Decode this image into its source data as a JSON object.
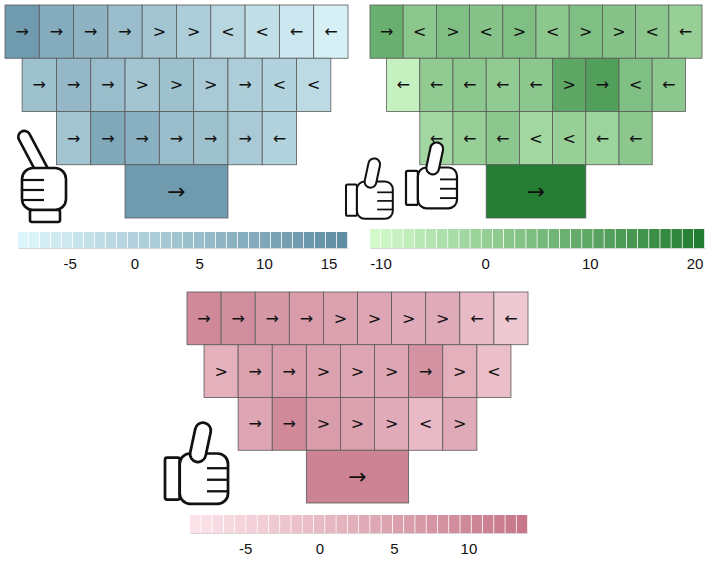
{
  "chart_data": [
    {
      "type": "heatmap",
      "rows": [
        [
          13,
          9,
          7,
          5,
          3,
          1,
          -1,
          -3,
          -5,
          -7
        ],
        [
          4,
          6,
          5,
          3,
          4,
          2,
          1,
          0,
          -2
        ],
        [
          3,
          10,
          8,
          5,
          4,
          2,
          0
        ],
        [
          13
        ]
      ],
      "arrows": [
        [
          "→",
          "→",
          "→",
          "→",
          ">",
          ">",
          "<",
          "<",
          "←",
          "←"
        ],
        [
          "→",
          "→",
          "→",
          ">",
          ">",
          ">",
          "→",
          "<",
          "<"
        ],
        [
          "→",
          "→",
          "→",
          "→",
          "→",
          "→",
          "←"
        ],
        [
          "→"
        ]
      ],
      "colorbar": {
        "range": [
          -9,
          16.5
        ],
        "ticks": [
          -5,
          0,
          5,
          10,
          15
        ],
        "color": [
          "#e0f8fd",
          "#5e8ca1"
        ]
      }
    },
    {
      "type": "heatmap",
      "rows": [
        [
          8,
          2,
          4,
          3,
          4,
          2,
          4,
          3,
          2,
          0
        ],
        [
          -8,
          1,
          2,
          1,
          2,
          10,
          12,
          4,
          2
        ],
        [
          -2,
          0,
          2,
          -2,
          0,
          -1,
          2
        ],
        [
          20
        ]
      ],
      "arrows": [
        [
          "→",
          "<",
          ">",
          "<",
          ">",
          "<",
          ">",
          ">",
          "<",
          "←"
        ],
        [
          "←",
          "←",
          "←",
          "←",
          "←",
          ">",
          "→",
          "<",
          "←"
        ],
        [
          "←",
          "←",
          "←",
          "<",
          "<",
          "←",
          "←"
        ],
        [
          "→"
        ]
      ],
      "colorbar": {
        "range": [
          -11,
          21
        ],
        "ticks": [
          -10,
          0,
          10,
          20
        ],
        "color": [
          "#d6fcce",
          "#1f7a2e"
        ]
      }
    },
    {
      "type": "heatmap",
      "rows": [
        [
          10,
          9,
          7,
          6,
          5,
          4,
          3,
          3,
          0,
          -3
        ],
        [
          2,
          5,
          6,
          5,
          4,
          4,
          8,
          2,
          -1
        ],
        [
          4,
          10,
          6,
          5,
          3,
          0,
          3
        ],
        [
          11
        ]
      ],
      "arrows": [
        [
          "→",
          "→",
          "→",
          "→",
          ">",
          ">",
          ">",
          ">",
          "←",
          "←"
        ],
        [
          ">",
          "→",
          "→",
          ">",
          ">",
          ">",
          "→",
          ">",
          "<"
        ],
        [
          "→",
          "→",
          ">",
          ">",
          ">",
          "<",
          ">"
        ],
        [
          "→"
        ]
      ],
      "colorbar": {
        "range": [
          -8.7,
          14
        ],
        "ticks": [
          -5,
          0,
          5,
          10
        ],
        "color": [
          "#fde5eb",
          "#c57588"
        ]
      }
    }
  ]
}
